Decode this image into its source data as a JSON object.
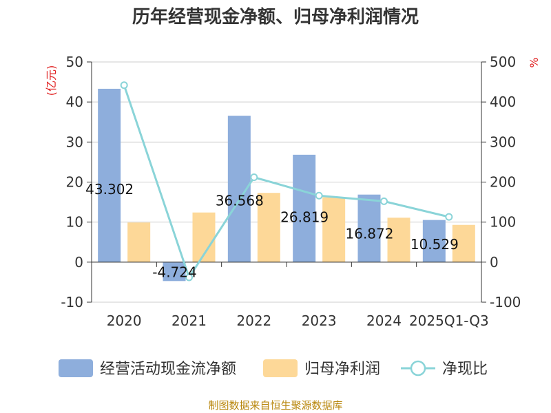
{
  "chart_data": {
    "type": "bar",
    "title": "历年经营现金净额、归母净利润情况",
    "categories": [
      "2020",
      "2021",
      "2022",
      "2023",
      "2024",
      "2025Q1-Q3"
    ],
    "ylabel_left": "(亿元)",
    "ylabel_right": "%",
    "ylim_left": [
      -10,
      50
    ],
    "ylim_right": [
      -100,
      500
    ],
    "yticks_left": [
      "-10",
      "0",
      "10",
      "20",
      "30",
      "40",
      "50"
    ],
    "yticks_right": [
      "-100",
      "0",
      "100",
      "200",
      "300",
      "400",
      "500"
    ],
    "series": [
      {
        "name": "经营活动现金流净额",
        "type": "bar",
        "axis": "left",
        "color": "#8eaedc",
        "values": [
          43.302,
          -4.724,
          36.568,
          26.819,
          16.872,
          10.529
        ],
        "labels": [
          "43.302",
          "-4.724",
          "36.568",
          "26.819",
          "16.872",
          "10.529"
        ]
      },
      {
        "name": "归母净利润",
        "type": "bar",
        "axis": "left",
        "color": "#fdd898",
        "values": [
          9.9,
          12.4,
          17.3,
          16.2,
          11.1,
          9.3
        ]
      },
      {
        "name": "净现比",
        "type": "line",
        "axis": "right",
        "color": "#8ad4d8",
        "values": [
          442,
          -38,
          212,
          166,
          152,
          113
        ]
      }
    ],
    "legend_position": "bottom",
    "grid": true
  },
  "source": "制图数据来自恒生聚源数据库"
}
